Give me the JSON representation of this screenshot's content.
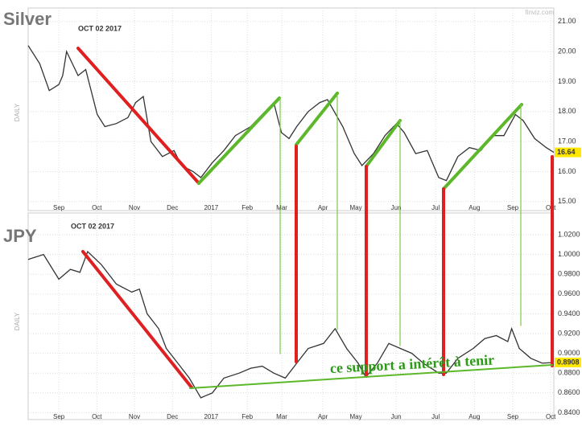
{
  "chart_data": [
    {
      "type": "line",
      "title": "Silver",
      "date": "OCT 02 2017",
      "ylabel": "DAILY",
      "color": "#333333",
      "x": [
        -0.8,
        -0.5,
        -0.25,
        0,
        0.1,
        0.2,
        0.5,
        0.7,
        1.0,
        1.2,
        1.5,
        1.8,
        2.0,
        2.2,
        2.4,
        2.7,
        3.0,
        3.2,
        3.5,
        3.7,
        4.0,
        4.3,
        4.6,
        5.0,
        5.3,
        5.6,
        5.8,
        6.0,
        6.2,
        6.5,
        6.8,
        7.0,
        7.4,
        7.7,
        7.9,
        8.2,
        8.5,
        8.8,
        9.0,
        9.3,
        9.6,
        9.9,
        10.1,
        10.4,
        10.7,
        11.0,
        11.3,
        11.6,
        11.9,
        12.1,
        12.4,
        12.7,
        12.9
      ],
      "values": [
        20.2,
        19.6,
        18.7,
        18.9,
        19.2,
        20.0,
        19.2,
        19.4,
        17.9,
        17.5,
        17.6,
        17.8,
        18.3,
        18.5,
        17.0,
        16.5,
        16.7,
        16.2,
        16.0,
        15.8,
        16.3,
        16.7,
        17.2,
        17.5,
        17.9,
        18.3,
        17.3,
        17.1,
        17.5,
        18.0,
        18.3,
        18.4,
        17.5,
        16.6,
        16.2,
        16.6,
        17.2,
        17.6,
        17.3,
        16.6,
        16.7,
        15.8,
        15.7,
        16.5,
        16.8,
        16.7,
        17.2,
        17.2,
        17.9,
        17.7,
        17.1,
        16.8,
        16.64
      ],
      "xlim": [
        -0.8,
        12.9
      ],
      "ylim": [
        14.7,
        21.45
      ],
      "xticks": [
        {
          "value": 0,
          "label": "Sep"
        },
        {
          "value": 0.99,
          "label": "Oct"
        },
        {
          "value": 1.97,
          "label": "Nov"
        },
        {
          "value": 2.96,
          "label": "Dec"
        },
        {
          "value": 3.97,
          "label": "2017"
        },
        {
          "value": 4.91,
          "label": "Feb"
        },
        {
          "value": 5.81,
          "label": "Mar"
        },
        {
          "value": 6.88,
          "label": "Apr"
        },
        {
          "value": 7.74,
          "label": "May"
        },
        {
          "value": 8.79,
          "label": "Jun"
        },
        {
          "value": 9.82,
          "label": "Jul"
        },
        {
          "value": 10.83,
          "label": "Aug"
        },
        {
          "value": 11.83,
          "label": "Sep"
        },
        {
          "value": 12.82,
          "label": "Oct"
        }
      ],
      "yticks": [
        {
          "value": 15,
          "label": "15.00"
        },
        {
          "value": 16,
          "label": "16.00"
        },
        {
          "value": 17,
          "label": "17.00"
        },
        {
          "value": 18,
          "label": "18.00"
        },
        {
          "value": 19,
          "label": "19.00"
        },
        {
          "value": 20,
          "label": "20.00"
        },
        {
          "value": 21,
          "label": "21.00"
        }
      ],
      "grid": true
    },
    {
      "type": "line",
      "title": "JPY",
      "date": "OCT 02 2017",
      "ylabel": "DAILY",
      "color": "#333333",
      "x": [
        -0.8,
        -0.4,
        0,
        0.3,
        0.55,
        0.75,
        1.1,
        1.5,
        1.9,
        2.1,
        2.3,
        2.6,
        2.8,
        3.1,
        3.4,
        3.7,
        4.0,
        4.3,
        4.7,
        5.0,
        5.3,
        5.6,
        5.9,
        6.2,
        6.5,
        6.9,
        7.2,
        7.5,
        7.8,
        8.0,
        8.3,
        8.6,
        8.9,
        9.2,
        9.5,
        9.9,
        10.1,
        10.4,
        10.8,
        11.1,
        11.4,
        11.7,
        11.8,
        12.0,
        12.3,
        12.6,
        12.9
      ],
      "values": [
        0.995,
        1.0,
        0.975,
        0.985,
        0.982,
        1.003,
        0.99,
        0.97,
        0.962,
        0.965,
        0.94,
        0.925,
        0.905,
        0.89,
        0.875,
        0.855,
        0.86,
        0.875,
        0.88,
        0.885,
        0.887,
        0.88,
        0.875,
        0.89,
        0.905,
        0.91,
        0.925,
        0.905,
        0.89,
        0.876,
        0.89,
        0.91,
        0.905,
        0.9,
        0.89,
        0.88,
        0.88,
        0.895,
        0.905,
        0.915,
        0.918,
        0.912,
        0.925,
        0.905,
        0.895,
        0.89,
        0.8908
      ],
      "xlim": [
        -0.8,
        12.9
      ],
      "ylim": [
        0.833,
        1.042
      ],
      "xticks": [
        {
          "value": 0,
          "label": "Sep"
        },
        {
          "value": 0.99,
          "label": "Oct"
        },
        {
          "value": 1.97,
          "label": "Nov"
        },
        {
          "value": 2.96,
          "label": "Dec"
        },
        {
          "value": 3.97,
          "label": "2017"
        },
        {
          "value": 4.91,
          "label": "Feb"
        },
        {
          "value": 5.81,
          "label": "Mar"
        },
        {
          "value": 6.88,
          "label": "Apr"
        },
        {
          "value": 7.74,
          "label": "May"
        },
        {
          "value": 8.79,
          "label": "Jun"
        },
        {
          "value": 9.82,
          "label": "Jul"
        },
        {
          "value": 10.83,
          "label": "Aug"
        },
        {
          "value": 11.83,
          "label": "Sep"
        },
        {
          "value": 12.82,
          "label": "Oct"
        }
      ],
      "yticks": [
        {
          "value": 0.84,
          "label": "0.8400"
        },
        {
          "value": 0.86,
          "label": "0.8600"
        },
        {
          "value": 0.88,
          "label": "0.8800"
        },
        {
          "value": 0.9,
          "label": "0.9000"
        },
        {
          "value": 0.92,
          "label": "0.9200"
        },
        {
          "value": 0.94,
          "label": "0.9400"
        },
        {
          "value": 0.96,
          "label": "0.9600"
        },
        {
          "value": 0.98,
          "label": "0.9800"
        },
        {
          "value": 1.0,
          "label": "1.0000"
        },
        {
          "value": 1.02,
          "label": "1.0200"
        }
      ],
      "grid": true
    }
  ],
  "annotation": "ce support a intérêt à tenir",
  "watermark": "finviz.com"
}
